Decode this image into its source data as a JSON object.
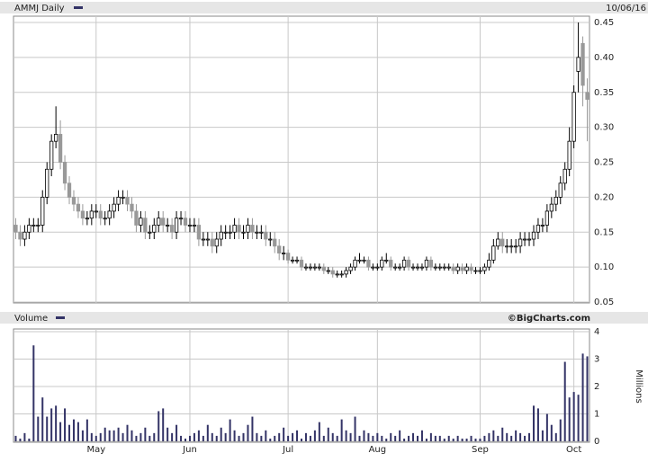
{
  "chart_data": [
    {
      "type": "candlestick",
      "title": "AMMJ Daily",
      "date": "10/06/16",
      "legend_color": "#333366",
      "up_color": "#ffffff",
      "down_color": "#999999",
      "grid": true,
      "open": [
        0.16,
        0.15,
        0.14,
        0.15,
        0.16,
        0.16,
        0.16,
        0.2,
        0.24,
        0.28,
        0.29,
        0.25,
        0.22,
        0.2,
        0.19,
        0.18,
        0.17,
        0.17,
        0.18,
        0.18,
        0.17,
        0.17,
        0.18,
        0.19,
        0.2,
        0.2,
        0.19,
        0.18,
        0.16,
        0.17,
        0.15,
        0.15,
        0.16,
        0.17,
        0.16,
        0.16,
        0.15,
        0.17,
        0.17,
        0.16,
        0.16,
        0.16,
        0.14,
        0.14,
        0.14,
        0.13,
        0.14,
        0.15,
        0.15,
        0.15,
        0.16,
        0.15,
        0.15,
        0.16,
        0.15,
        0.15,
        0.15,
        0.14,
        0.14,
        0.13,
        0.12,
        0.12,
        0.11,
        0.11,
        0.11,
        0.1,
        0.1,
        0.1,
        0.1,
        0.1,
        0.095,
        0.095,
        0.09,
        0.09,
        0.09,
        0.095,
        0.1,
        0.11,
        0.11,
        0.11,
        0.1,
        0.1,
        0.1,
        0.11,
        0.11,
        0.1,
        0.1,
        0.1,
        0.11,
        0.1,
        0.1,
        0.1,
        0.1,
        0.11,
        0.1,
        0.1,
        0.1,
        0.1,
        0.1,
        0.095,
        0.1,
        0.095,
        0.1,
        0.095,
        0.095,
        0.095,
        0.1,
        0.11,
        0.13,
        0.14,
        0.13,
        0.13,
        0.13,
        0.13,
        0.14,
        0.14,
        0.14,
        0.15,
        0.16,
        0.16,
        0.18,
        0.19,
        0.2,
        0.22,
        0.24,
        0.28,
        0.38,
        0.42,
        0.35
      ],
      "high": [
        0.17,
        0.16,
        0.16,
        0.17,
        0.17,
        0.17,
        0.21,
        0.25,
        0.29,
        0.33,
        0.31,
        0.26,
        0.23,
        0.21,
        0.2,
        0.19,
        0.18,
        0.19,
        0.19,
        0.19,
        0.18,
        0.19,
        0.2,
        0.21,
        0.21,
        0.21,
        0.2,
        0.19,
        0.18,
        0.18,
        0.16,
        0.17,
        0.18,
        0.18,
        0.17,
        0.17,
        0.18,
        0.18,
        0.18,
        0.17,
        0.17,
        0.17,
        0.15,
        0.15,
        0.15,
        0.15,
        0.16,
        0.16,
        0.16,
        0.17,
        0.17,
        0.16,
        0.17,
        0.17,
        0.16,
        0.16,
        0.16,
        0.15,
        0.15,
        0.14,
        0.13,
        0.125,
        0.115,
        0.115,
        0.115,
        0.105,
        0.105,
        0.105,
        0.105,
        0.105,
        0.1,
        0.1,
        0.095,
        0.095,
        0.1,
        0.105,
        0.115,
        0.12,
        0.115,
        0.115,
        0.105,
        0.105,
        0.115,
        0.12,
        0.115,
        0.105,
        0.105,
        0.115,
        0.115,
        0.105,
        0.105,
        0.105,
        0.115,
        0.115,
        0.105,
        0.105,
        0.105,
        0.105,
        0.105,
        0.105,
        0.105,
        0.105,
        0.105,
        0.1,
        0.1,
        0.105,
        0.12,
        0.14,
        0.15,
        0.15,
        0.14,
        0.14,
        0.14,
        0.15,
        0.15,
        0.15,
        0.16,
        0.17,
        0.17,
        0.19,
        0.2,
        0.21,
        0.23,
        0.25,
        0.3,
        0.36,
        0.45,
        0.43,
        0.37
      ],
      "low": [
        0.14,
        0.13,
        0.13,
        0.14,
        0.15,
        0.15,
        0.15,
        0.19,
        0.23,
        0.27,
        0.24,
        0.21,
        0.19,
        0.18,
        0.17,
        0.16,
        0.16,
        0.16,
        0.17,
        0.16,
        0.16,
        0.16,
        0.17,
        0.18,
        0.19,
        0.18,
        0.17,
        0.15,
        0.15,
        0.14,
        0.14,
        0.14,
        0.15,
        0.15,
        0.15,
        0.14,
        0.14,
        0.16,
        0.15,
        0.15,
        0.15,
        0.13,
        0.13,
        0.13,
        0.12,
        0.12,
        0.13,
        0.14,
        0.14,
        0.14,
        0.14,
        0.14,
        0.14,
        0.14,
        0.14,
        0.14,
        0.13,
        0.13,
        0.12,
        0.11,
        0.11,
        0.105,
        0.105,
        0.105,
        0.095,
        0.095,
        0.095,
        0.095,
        0.095,
        0.09,
        0.09,
        0.085,
        0.085,
        0.085,
        0.085,
        0.09,
        0.095,
        0.105,
        0.105,
        0.095,
        0.095,
        0.095,
        0.095,
        0.105,
        0.095,
        0.095,
        0.095,
        0.095,
        0.095,
        0.095,
        0.095,
        0.095,
        0.095,
        0.095,
        0.095,
        0.095,
        0.095,
        0.095,
        0.09,
        0.09,
        0.09,
        0.09,
        0.09,
        0.09,
        0.09,
        0.09,
        0.095,
        0.105,
        0.125,
        0.12,
        0.12,
        0.12,
        0.12,
        0.12,
        0.13,
        0.13,
        0.13,
        0.14,
        0.15,
        0.15,
        0.17,
        0.18,
        0.19,
        0.21,
        0.23,
        0.27,
        0.35,
        0.33,
        0.28
      ],
      "close": [
        0.15,
        0.14,
        0.15,
        0.16,
        0.16,
        0.16,
        0.2,
        0.24,
        0.28,
        0.29,
        0.25,
        0.22,
        0.2,
        0.19,
        0.18,
        0.17,
        0.17,
        0.18,
        0.18,
        0.17,
        0.17,
        0.18,
        0.19,
        0.2,
        0.2,
        0.19,
        0.18,
        0.16,
        0.17,
        0.15,
        0.15,
        0.16,
        0.17,
        0.16,
        0.16,
        0.15,
        0.17,
        0.17,
        0.16,
        0.16,
        0.16,
        0.14,
        0.14,
        0.14,
        0.13,
        0.14,
        0.15,
        0.15,
        0.15,
        0.16,
        0.15,
        0.15,
        0.16,
        0.15,
        0.15,
        0.15,
        0.14,
        0.14,
        0.13,
        0.12,
        0.12,
        0.11,
        0.11,
        0.11,
        0.1,
        0.1,
        0.1,
        0.1,
        0.1,
        0.095,
        0.095,
        0.09,
        0.09,
        0.09,
        0.095,
        0.1,
        0.11,
        0.11,
        0.11,
        0.1,
        0.1,
        0.1,
        0.11,
        0.11,
        0.1,
        0.1,
        0.1,
        0.11,
        0.1,
        0.1,
        0.1,
        0.1,
        0.11,
        0.1,
        0.1,
        0.1,
        0.1,
        0.1,
        0.095,
        0.1,
        0.095,
        0.1,
        0.095,
        0.095,
        0.095,
        0.1,
        0.11,
        0.13,
        0.14,
        0.13,
        0.13,
        0.13,
        0.13,
        0.14,
        0.14,
        0.14,
        0.15,
        0.16,
        0.16,
        0.18,
        0.19,
        0.2,
        0.22,
        0.24,
        0.28,
        0.35,
        0.4,
        0.36,
        0.34
      ],
      "ylim": [
        0.05,
        0.45
      ],
      "yticks": [
        0.05,
        {
          "value": 0.1,
          "label": "0.10"
        },
        0.15,
        {
          "value": 0.2,
          "label": "0.20"
        },
        0.25,
        {
          "value": 0.3,
          "label": "0.30"
        },
        0.35,
        {
          "value": 0.4,
          "label": "0.40"
        },
        0.45
      ]
    },
    {
      "type": "bar",
      "title": "Volume",
      "source": "©BigCharts.com",
      "y_label": "Millions",
      "color": "#333366",
      "legend_color": "#333366",
      "grid": true,
      "categories": [
        null,
        null,
        null,
        null,
        null,
        null,
        null,
        null,
        null,
        null,
        null,
        null,
        null,
        null,
        null,
        null,
        null,
        null,
        "May",
        null,
        null,
        null,
        null,
        null,
        null,
        null,
        null,
        null,
        null,
        null,
        null,
        null,
        null,
        null,
        null,
        null,
        null,
        null,
        null,
        "Jun",
        null,
        null,
        null,
        null,
        null,
        null,
        null,
        null,
        null,
        null,
        null,
        null,
        null,
        null,
        null,
        null,
        null,
        null,
        null,
        null,
        null,
        "Jul",
        null,
        null,
        null,
        null,
        null,
        null,
        null,
        null,
        null,
        null,
        null,
        null,
        null,
        null,
        null,
        null,
        null,
        null,
        null,
        "Aug",
        null,
        null,
        null,
        null,
        null,
        null,
        null,
        null,
        null,
        null,
        null,
        null,
        null,
        null,
        null,
        null,
        null,
        null,
        null,
        null,
        null,
        null,
        "Sep",
        null,
        null,
        null,
        null,
        null,
        null,
        null,
        null,
        null,
        null,
        null,
        null,
        null,
        null,
        null,
        null,
        null,
        null,
        null,
        null,
        "Oct",
        null,
        null,
        null
      ],
      "values": [
        0.2,
        0.1,
        0.3,
        0.1,
        3.5,
        0.9,
        1.6,
        0.9,
        1.2,
        1.3,
        0.7,
        1.2,
        0.6,
        0.8,
        0.7,
        0.4,
        0.8,
        0.3,
        0.2,
        0.3,
        0.5,
        0.4,
        0.4,
        0.5,
        0.3,
        0.6,
        0.4,
        0.2,
        0.3,
        0.5,
        0.2,
        0.3,
        1.1,
        1.2,
        0.5,
        0.3,
        0.6,
        0.2,
        0.1,
        0.2,
        0.3,
        0.4,
        0.2,
        0.6,
        0.3,
        0.2,
        0.5,
        0.3,
        0.8,
        0.4,
        0.2,
        0.3,
        0.6,
        0.9,
        0.3,
        0.2,
        0.4,
        0.1,
        0.2,
        0.3,
        0.5,
        0.2,
        0.3,
        0.4,
        0.1,
        0.3,
        0.2,
        0.4,
        0.7,
        0.2,
        0.5,
        0.3,
        0.2,
        0.8,
        0.4,
        0.3,
        0.9,
        0.2,
        0.4,
        0.3,
        0.2,
        0.3,
        0.2,
        0.1,
        0.3,
        0.2,
        0.4,
        0.1,
        0.2,
        0.3,
        0.2,
        0.4,
        0.1,
        0.3,
        0.2,
        0.2,
        0.1,
        0.2,
        0.1,
        0.2,
        0.1,
        0.1,
        0.2,
        0.1,
        0.1,
        0.2,
        0.3,
        0.4,
        0.2,
        0.5,
        0.3,
        0.2,
        0.4,
        0.3,
        0.2,
        0.3,
        1.3,
        1.2,
        0.4,
        1.0,
        0.6,
        0.3,
        0.8,
        2.9,
        1.6,
        1.8,
        1.7,
        3.2,
        3.1
      ],
      "ylim": [
        0,
        4
      ],
      "yticks": [
        0,
        1,
        2,
        3,
        4
      ]
    }
  ]
}
